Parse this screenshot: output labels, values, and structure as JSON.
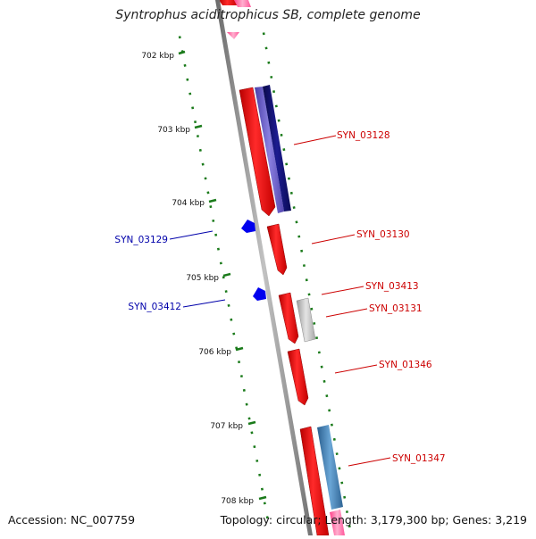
{
  "title": "Syntrophus aciditrophicus SB, complete genome",
  "accession": "Accession: NC_007759",
  "summary": "Topology: circular; Length: 3,179,300 bp; Genes: 3,219",
  "kbp_ticks": [
    {
      "label": "702 kbp",
      "kbp": 702
    },
    {
      "label": "703 kbp",
      "kbp": 703
    },
    {
      "label": "704 kbp",
      "kbp": 704
    },
    {
      "label": "705 kbp",
      "kbp": 705
    },
    {
      "label": "706 kbp",
      "kbp": 706
    },
    {
      "label": "707 kbp",
      "kbp": 707
    },
    {
      "label": "708 kbp",
      "kbp": 708
    }
  ],
  "gene_labels_forward": [
    "SYN_03128",
    "SYN_03130",
    "SYN_03413",
    "SYN_03131",
    "SYN_01346",
    "SYN_01347"
  ],
  "gene_labels_reverse": [
    "SYN_03129",
    "SYN_03412"
  ],
  "colors": {
    "backbone": "#8a8a8a",
    "tick": "#1a7a1a",
    "cds": "#ee1111",
    "cds_forward_label": "#cc0000",
    "cds_reverse": "#0000ee",
    "cds_reverse_label": "#0000aa",
    "protein": "#6a5fc9",
    "protein_dark": "#1a1a7a",
    "pseudo": "#bbbbbb",
    "steelblue": "#4a88bb",
    "pink": "#ff6fa8"
  }
}
